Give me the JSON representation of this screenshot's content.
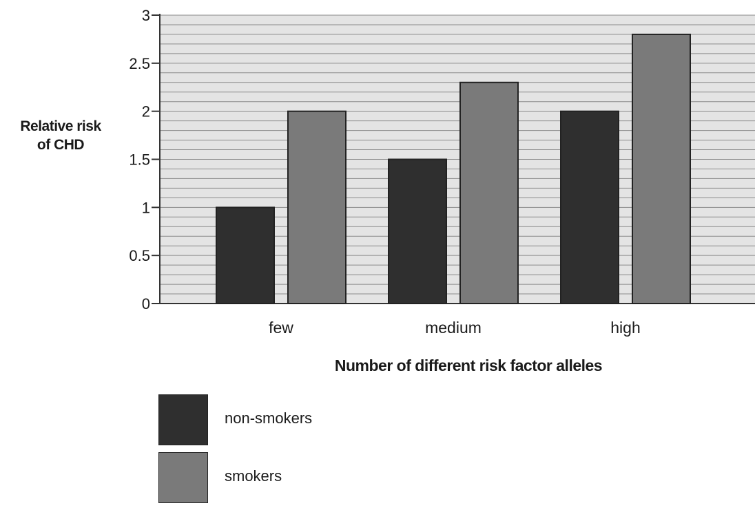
{
  "chart_data": {
    "type": "bar",
    "title": "",
    "xlabel": "Number of different risk factor alleles",
    "ylabel_lines": [
      "Relative risk",
      "of CHD"
    ],
    "categories": [
      "few",
      "medium",
      "high"
    ],
    "series": [
      {
        "name": "non-smokers",
        "values": [
          1,
          1.5,
          2
        ],
        "color": "#2f2f2f"
      },
      {
        "name": "smokers",
        "values": [
          2,
          2.3,
          2.8
        ],
        "color": "#7a7a7a"
      }
    ],
    "ylim": [
      0,
      3
    ],
    "yticks": [
      "0",
      "0.5",
      "1",
      "1.5",
      "2",
      "2.5",
      "3"
    ],
    "grid": true,
    "legend_position": "bottom-left"
  }
}
